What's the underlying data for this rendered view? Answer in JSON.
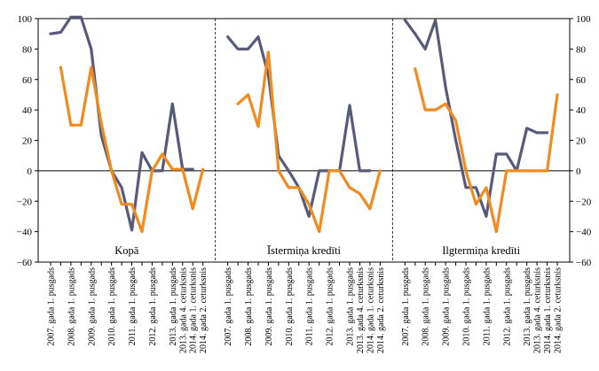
{
  "chart_data": {
    "type": "line",
    "ylim": [
      -60,
      100
    ],
    "yticks": [
      100,
      80,
      60,
      40,
      20,
      0,
      -20,
      -40,
      -60
    ],
    "ytick_labels": [
      "100",
      "80",
      "60",
      "40",
      "20",
      "0",
      "−20",
      "−40",
      "−60"
    ],
    "grid": false,
    "colors": {
      "series_1": "#575a7a",
      "series_2": "#f28a1e"
    },
    "categories": [
      "2007. gada 1. pusgads",
      "",
      "2008. gada 1. pusgads",
      "",
      "2009. gada 1. pusgads",
      "",
      "2010. gada 1. pusgads",
      "",
      "2011. gada 1. pusgads",
      "",
      "2012. gada 1. pusgads",
      "",
      "2013. gada 1. pusgads",
      "2013. gada 4. ceturksnis",
      "2014. gada 1. ceturksnis",
      "2014. gada 2. ceturksnis"
    ],
    "panels": [
      {
        "title": "Kopā",
        "series": [
          {
            "values": [
              90,
              91,
              101,
              101,
              80,
              23,
              0,
              -11,
              -39,
              12,
              0,
              0,
              44,
              1,
              1,
              null
            ]
          },
          {
            "values": [
              null,
              68,
              30,
              30,
              68,
              31,
              0,
              -22,
              -22,
              -40,
              0,
              11,
              1,
              1,
              -25,
              1
            ]
          }
        ]
      },
      {
        "title": "Īstermiņa kredīti",
        "series": [
          {
            "values": [
              88,
              80,
              80,
              88,
              63,
              10,
              0,
              -11,
              -30,
              0,
              0,
              0,
              43,
              0,
              0,
              null
            ]
          },
          {
            "values": [
              null,
              44,
              50,
              29,
              78,
              0,
              -11,
              -11,
              -22,
              -40,
              0,
              0,
              -11,
              -15,
              -25,
              0
            ]
          }
        ]
      },
      {
        "title": "Ilgtermiņa kredīti",
        "series": [
          {
            "values": [
              99,
              90,
              80,
              99,
              55,
              20,
              -11,
              -11,
              -30,
              11,
              11,
              0,
              28,
              25,
              25,
              null
            ]
          },
          {
            "values": [
              null,
              67,
              40,
              40,
              44,
              33,
              0,
              -22,
              -11,
              -40,
              0,
              0,
              0,
              0,
              0,
              50
            ]
          }
        ]
      }
    ]
  }
}
